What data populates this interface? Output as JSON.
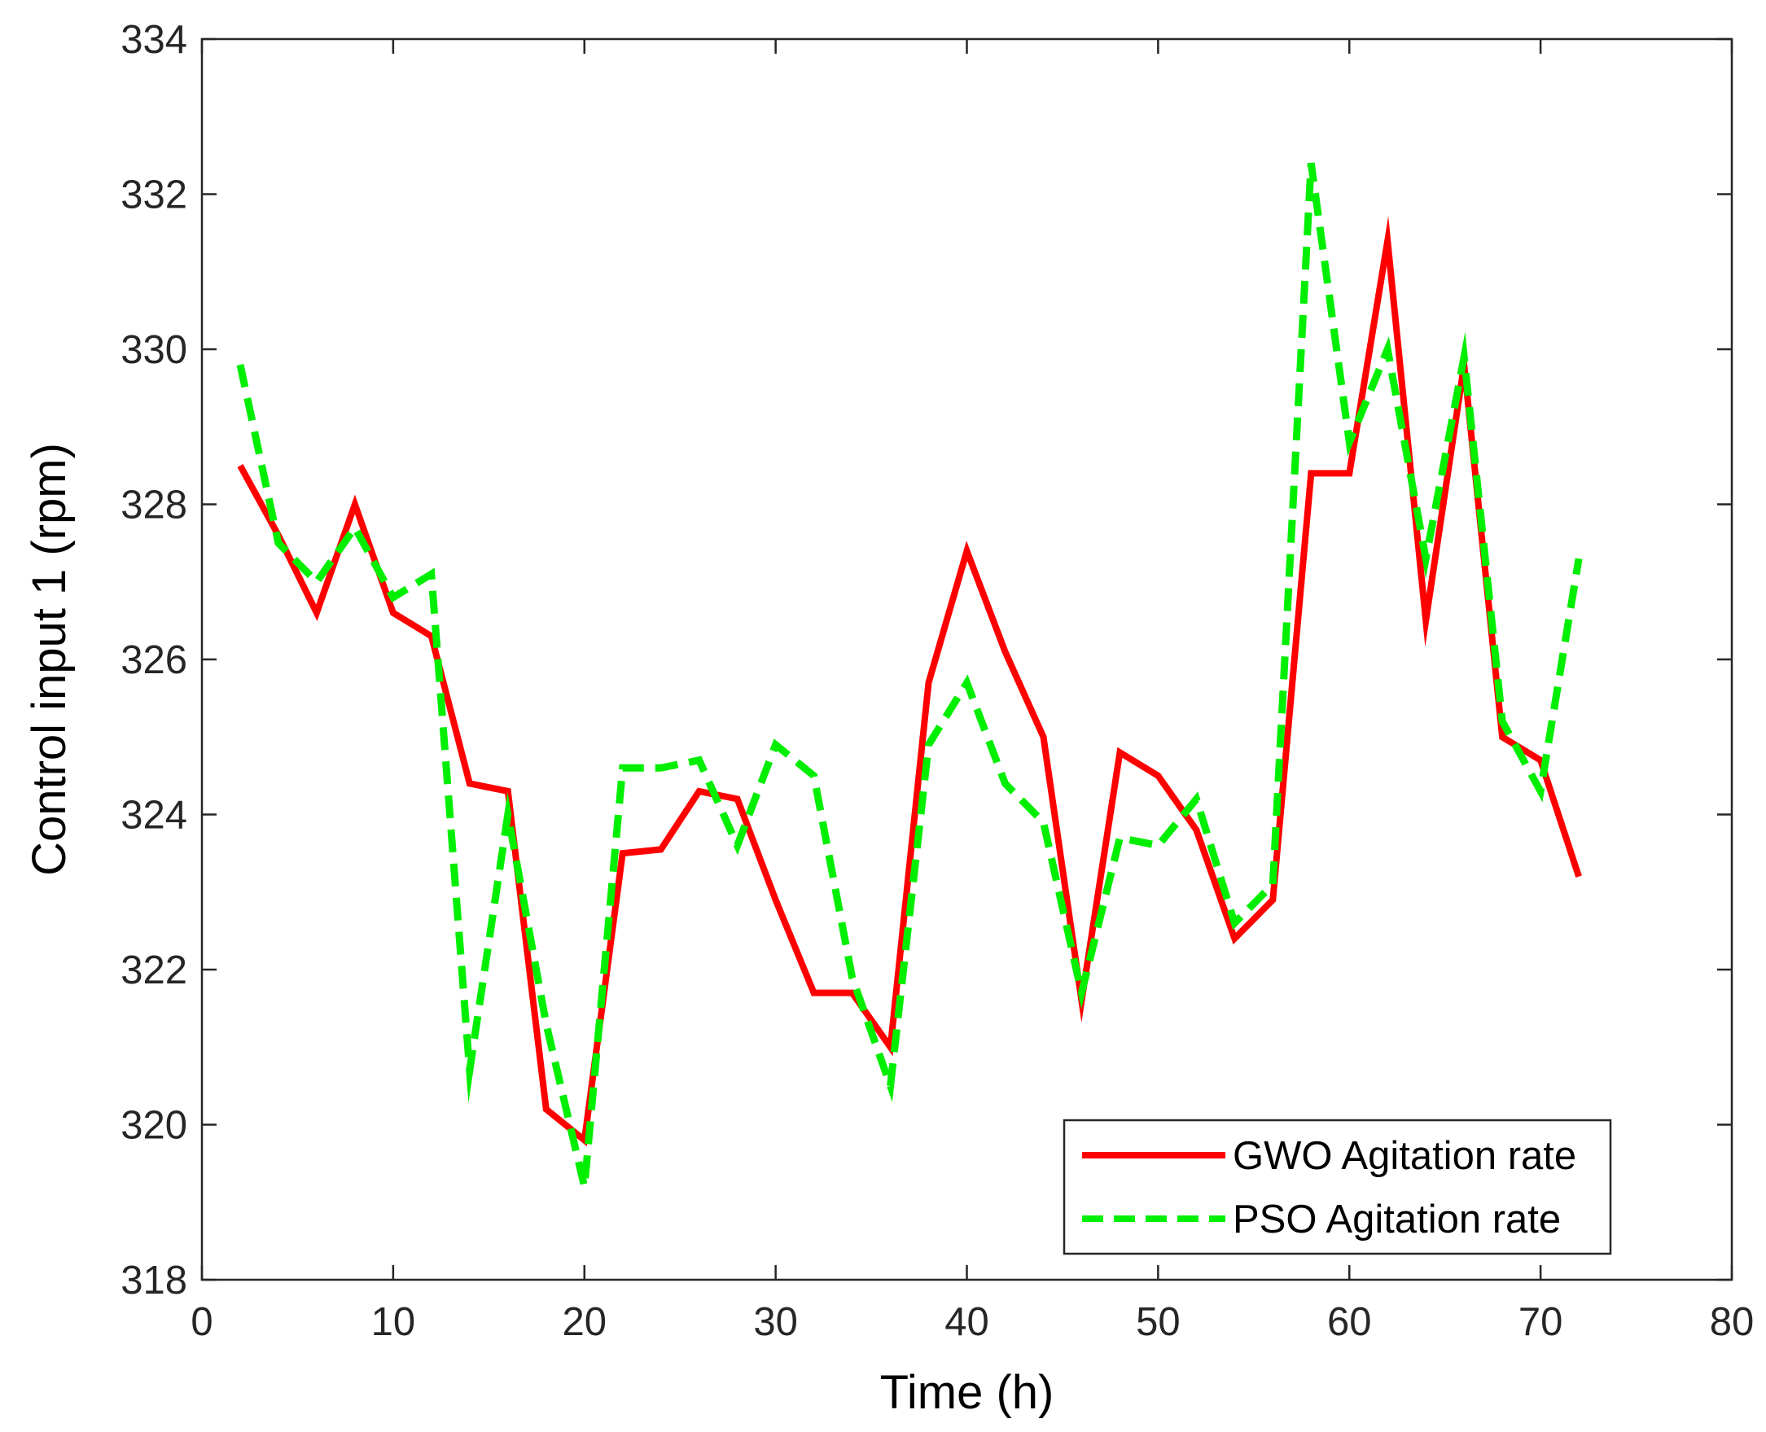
{
  "chart_data": {
    "type": "line",
    "title": "",
    "xlabel": "Time (h)",
    "ylabel": "Control input 1 (rpm)",
    "xlim": [
      0,
      80
    ],
    "ylim": [
      318,
      334
    ],
    "xticks": [
      0,
      10,
      20,
      30,
      40,
      50,
      60,
      70,
      80
    ],
    "yticks": [
      318,
      320,
      322,
      324,
      326,
      328,
      330,
      332,
      334
    ],
    "xtick_labels": [
      "0",
      "10",
      "20",
      "30",
      "40",
      "50",
      "60",
      "70",
      "80"
    ],
    "ytick_labels": [
      "318",
      "320",
      "322",
      "324",
      "326",
      "328",
      "330",
      "332",
      "334"
    ],
    "grid": false,
    "legend_position": "bottom-right",
    "series": [
      {
        "name": "GWO Agitation rate",
        "color": "#ff0000",
        "style": "solid",
        "x": [
          2,
          4,
          6,
          8,
          10,
          12,
          14,
          16,
          18,
          20,
          22,
          24,
          26,
          28,
          30,
          32,
          34,
          36,
          38,
          40,
          42,
          44,
          46,
          48,
          50,
          52,
          54,
          56,
          58,
          60,
          62,
          64,
          66,
          68,
          70,
          72
        ],
        "y": [
          328.5,
          327.6,
          326.6,
          328.0,
          326.6,
          326.3,
          324.4,
          324.3,
          320.2,
          319.8,
          323.5,
          323.55,
          324.3,
          324.2,
          322.9,
          321.7,
          321.7,
          321.0,
          325.7,
          327.4,
          326.1,
          325.0,
          321.6,
          324.8,
          324.5,
          323.8,
          322.4,
          322.9,
          328.4,
          328.4,
          331.4,
          326.5,
          329.8,
          325.0,
          324.7,
          323.2
        ]
      },
      {
        "name": "PSO Agitation rate",
        "color": "#00ee00",
        "style": "dashed",
        "x": [
          2,
          4,
          6,
          8,
          10,
          12,
          14,
          16,
          18,
          20,
          22,
          24,
          26,
          28,
          30,
          32,
          34,
          36,
          38,
          40,
          42,
          44,
          46,
          48,
          50,
          52,
          54,
          56,
          58,
          60,
          62,
          64,
          66,
          68,
          70,
          72
        ],
        "y": [
          329.8,
          327.5,
          327.0,
          327.7,
          326.8,
          327.1,
          320.7,
          324.0,
          321.3,
          319.2,
          324.6,
          324.6,
          324.7,
          323.6,
          324.9,
          324.5,
          321.9,
          320.5,
          324.9,
          325.7,
          324.4,
          323.9,
          321.7,
          323.7,
          323.6,
          324.2,
          322.6,
          323.1,
          332.4,
          328.8,
          330.0,
          327.3,
          329.9,
          325.2,
          324.3,
          327.3
        ]
      }
    ]
  }
}
